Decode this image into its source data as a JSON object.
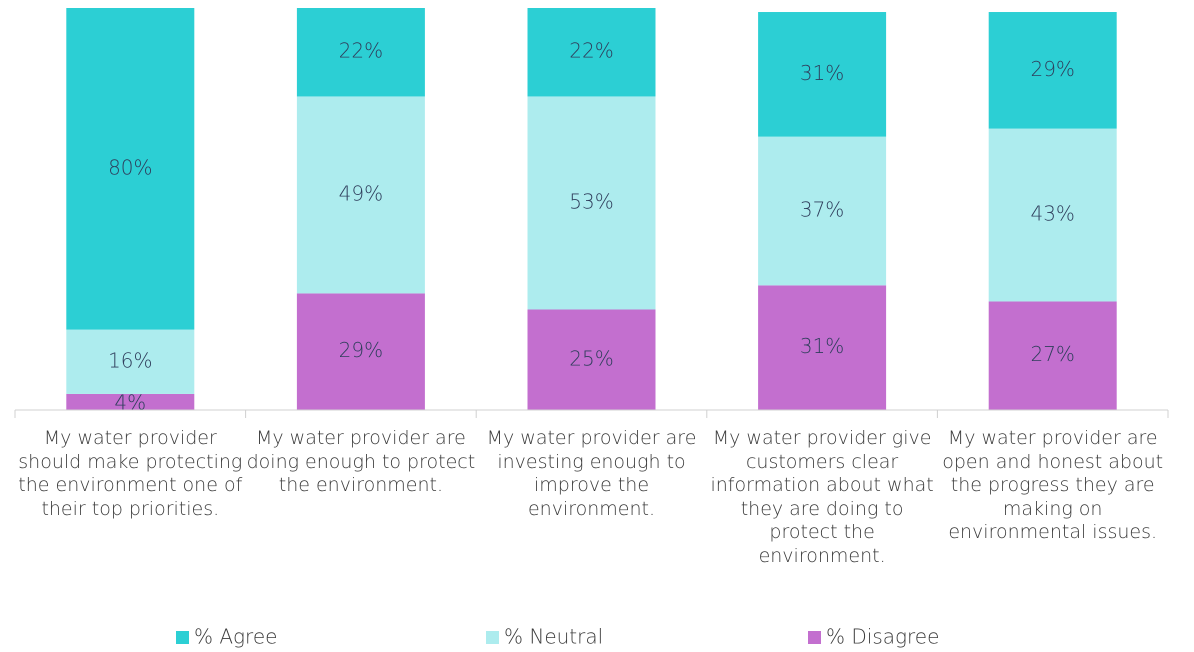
{
  "chart_data": {
    "type": "stacked_bar",
    "categories": [
      "My water provider should make protecting the environment one of their top priorities.",
      "My water provider are doing enough to protect the environment.",
      "My water provider are investing enough to improve the environment.",
      "My water provider give customers clear information about what they are doing to protect the environment.",
      "My water provider are open and honest about the progress they are making on environmental issues."
    ],
    "series": [
      {
        "name": "% Agree",
        "color": "#2ccfd4",
        "values": [
          80,
          22,
          22,
          31,
          29
        ],
        "value_labels": [
          "80%",
          "22%",
          "22%",
          "31%",
          "29%"
        ]
      },
      {
        "name": "% Neutral",
        "color": "#adecee",
        "values": [
          16,
          49,
          53,
          37,
          43
        ],
        "value_labels": [
          "16%",
          "49%",
          "53%",
          "37%",
          "43%"
        ]
      },
      {
        "name": "% Disagree",
        "color": "#c36fcf",
        "values": [
          4,
          29,
          25,
          31,
          27
        ],
        "value_labels": [
          "4%",
          "29%",
          "25%",
          "31%",
          "27%"
        ]
      }
    ],
    "ylim": [
      0,
      100
    ],
    "legend": "bottom"
  }
}
